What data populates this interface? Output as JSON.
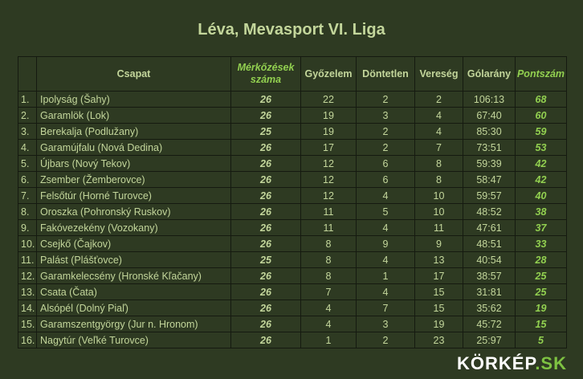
{
  "title": "Léva, Mevasport VI. Liga",
  "columns": {
    "rank": "",
    "team": "Csapat",
    "matches": "Mérkőzések száma",
    "wins": "Győzelem",
    "draws": "Döntetlen",
    "losses": "Vereség",
    "goals": "Gólarány",
    "points": "Pontszám"
  },
  "rows": [
    {
      "rank": "1.",
      "team": "Ipolyság (Šahy)",
      "matches": "26",
      "wins": "22",
      "draws": "2",
      "losses": "2",
      "goals": "106:13",
      "points": "68"
    },
    {
      "rank": "2.",
      "team": "Garamlök (Lok)",
      "matches": "26",
      "wins": "19",
      "draws": "3",
      "losses": "4",
      "goals": "67:40",
      "points": "60"
    },
    {
      "rank": "3.",
      "team": "Berekalja (Podlužany)",
      "matches": "25",
      "wins": "19",
      "draws": "2",
      "losses": "4",
      "goals": "85:30",
      "points": "59"
    },
    {
      "rank": "4.",
      "team": "Garamújfalu (Nová Dedina)",
      "matches": "26",
      "wins": "17",
      "draws": "2",
      "losses": "7",
      "goals": "73:51",
      "points": "53"
    },
    {
      "rank": "5.",
      "team": "Újbars (Nový Tekov)",
      "matches": "26",
      "wins": "12",
      "draws": "6",
      "losses": "8",
      "goals": "59:39",
      "points": "42"
    },
    {
      "rank": "6.",
      "team": "Zsember (Žemberovce)",
      "matches": "26",
      "wins": "12",
      "draws": "6",
      "losses": "8",
      "goals": "58:47",
      "points": "42"
    },
    {
      "rank": "7.",
      "team": "Felsőtúr (Horné Turovce)",
      "matches": "26",
      "wins": "12",
      "draws": "4",
      "losses": "10",
      "goals": "59:57",
      "points": "40"
    },
    {
      "rank": "8.",
      "team": "Oroszka (Pohronský Ruskov)",
      "matches": "26",
      "wins": "11",
      "draws": "5",
      "losses": "10",
      "goals": "48:52",
      "points": "38"
    },
    {
      "rank": "9.",
      "team": "Fakóvezekény (Vozokany)",
      "matches": "26",
      "wins": "11",
      "draws": "4",
      "losses": "11",
      "goals": "47:61",
      "points": "37"
    },
    {
      "rank": "10.",
      "team": "Csejkő (Čajkov)",
      "matches": "26",
      "wins": "8",
      "draws": "9",
      "losses": "9",
      "goals": "48:51",
      "points": "33"
    },
    {
      "rank": "11.",
      "team": "Palást (Plášťovce)",
      "matches": "25",
      "wins": "8",
      "draws": "4",
      "losses": "13",
      "goals": "40:54",
      "points": "28"
    },
    {
      "rank": "12.",
      "team": "Garamkelecsény (Hronské Kľačany)",
      "matches": "26",
      "wins": "8",
      "draws": "1",
      "losses": "17",
      "goals": "38:57",
      "points": "25"
    },
    {
      "rank": "13.",
      "team": "Csata (Čata)",
      "matches": "26",
      "wins": "7",
      "draws": "4",
      "losses": "15",
      "goals": "31:81",
      "points": "25"
    },
    {
      "rank": "14.",
      "team": "Alsópél (Dolný Piaľ)",
      "matches": "26",
      "wins": "4",
      "draws": "7",
      "losses": "15",
      "goals": "35:62",
      "points": "19"
    },
    {
      "rank": "15.",
      "team": "Garamszentgyörgy (Jur n. Hronom)",
      "matches": "26",
      "wins": "4",
      "draws": "3",
      "losses": "19",
      "goals": "45:72",
      "points": "15"
    },
    {
      "rank": "16.",
      "team": "Nagytúr (Veľké Turovce)",
      "matches": "26",
      "wins": "1",
      "draws": "2",
      "losses": "23",
      "goals": "25:97",
      "points": "5"
    }
  ],
  "logo": {
    "main": "KÖRKÉP",
    "accent": ".SK"
  }
}
